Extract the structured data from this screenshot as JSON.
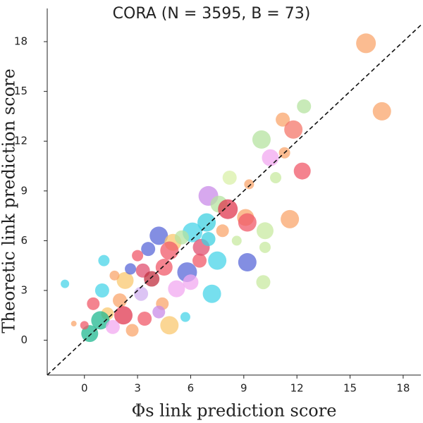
{
  "chart_data": {
    "type": "scatter",
    "title": "CORA (N = 3595, B = 73)",
    "xlabel": "Φs link prediction score",
    "ylabel": "Theoretic link prediction score",
    "xlim": [
      -2.1,
      19
    ],
    "ylim": [
      -2.1,
      20
    ],
    "xticks": [
      0,
      3,
      6,
      9,
      12,
      15,
      18
    ],
    "yticks": [
      0,
      3,
      6,
      9,
      12,
      15,
      18
    ],
    "diagonal": true,
    "x": [
      15.9,
      16.8,
      12.4,
      11.2,
      11.8,
      10,
      11.3,
      10.5,
      12.3,
      10.8,
      8.2,
      9.3,
      7.0,
      7.6,
      8.1,
      9.1,
      11.6,
      9.2,
      10.2,
      6.9,
      6.1,
      4.2,
      5.0,
      4.8,
      3.6,
      3.0,
      1.1,
      6.5,
      7.5,
      9.2,
      10.2,
      5.8,
      3.3,
      4.5,
      2.3,
      3.8,
      1.0,
      -1.1,
      5.2,
      7.2,
      10.1,
      2.0,
      3.2,
      4.4,
      0.5,
      1.3,
      2.2,
      3.4,
      4.8,
      0.9,
      0.3,
      1.6,
      2.7,
      5.7,
      4.2,
      6.0,
      5.5,
      7.8,
      8.6,
      2.6,
      1.7,
      -0.6,
      0.0,
      6.6,
      7.0
    ],
    "y": [
      17.9,
      13.8,
      14.1,
      13.3,
      12.7,
      12.1,
      11.3,
      11.0,
      10.2,
      9.8,
      9.8,
      9.4,
      8.7,
      8.2,
      7.9,
      7.4,
      7.3,
      7.1,
      6.6,
      7.1,
      6.5,
      6.3,
      5.9,
      5.4,
      5.5,
      5.1,
      4.8,
      4.8,
      4.8,
      4.7,
      5.6,
      4.1,
      4.2,
      4.4,
      3.6,
      3.7,
      3.0,
      3.4,
      3.1,
      2.8,
      3.5,
      2.4,
      2.8,
      2.2,
      2.2,
      1.6,
      1.5,
      1.3,
      0.9,
      1.2,
      0.4,
      0.8,
      0.6,
      1.4,
      1.7,
      3.5,
      6.2,
      6.6,
      6.0,
      4.3,
      3.9,
      1.0,
      0.9,
      5.6,
      6.1
    ],
    "sizes": [
      14,
      13,
      10,
      10,
      13,
      13,
      8,
      12,
      12,
      8,
      10,
      7,
      14,
      12,
      14,
      12,
      13,
      13,
      12,
      13,
      14,
      13,
      12,
      13,
      10,
      8,
      8,
      10,
      13,
      13,
      8,
      14,
      10,
      12,
      12,
      11,
      10,
      6,
      12,
      13,
      10,
      10,
      10,
      9,
      9,
      9,
      13,
      10,
      13,
      13,
      12,
      10,
      9,
      7,
      9,
      11,
      10,
      9,
      7,
      8,
      7,
      4,
      6,
      12,
      10
    ],
    "colors": [
      "#f9a66c",
      "#f9a66c",
      "#b5e3a0",
      "#f9a66c",
      "#f4776b",
      "#b5e3a0",
      "#f9a66c",
      "#f2a8f0",
      "#f05a6a",
      "#c8eaa0",
      "#d9f0a8",
      "#f9a66c",
      "#c98be8",
      "#b5e3a0",
      "#e03850",
      "#f9a66c",
      "#f9a66c",
      "#f05a6a",
      "#c8eaa0",
      "#3fd0e0",
      "#48d4e8",
      "#5968d8",
      "#f9c870",
      "#f05a6a",
      "#5968d8",
      "#f05a6a",
      "#48d4e8",
      "#f05a6a",
      "#48d4e8",
      "#5968d8",
      "#c8eaa0",
      "#5968d8",
      "#e05070",
      "#f05a6a",
      "#f9c870",
      "#c03040",
      "#48d4e8",
      "#48d4e8",
      "#f2a8f0",
      "#48d4e8",
      "#c8eaa0",
      "#f9a66c",
      "#d0b0f0",
      "#f9a66c",
      "#f05a6a",
      "#f9c870",
      "#e03850",
      "#f05a6a",
      "#f9c870",
      "#20b890",
      "#20b890",
      "#f2a8f0",
      "#f9a66c",
      "#48d4e8",
      "#c98be8",
      "#f2a8f0",
      "#b5e3a0",
      "#f9a66c",
      "#c8eaa0",
      "#5968d8",
      "#f9a66c",
      "#f9a66c",
      "#f05a6a",
      "#e05070",
      "#3fd0e0"
    ]
  }
}
